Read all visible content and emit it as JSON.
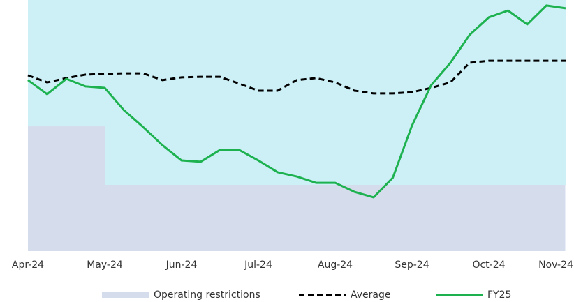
{
  "chart_data": {
    "type": "line",
    "x": [
      0,
      0.25,
      0.5,
      0.75,
      1,
      1.25,
      1.5,
      1.75,
      2,
      2.25,
      2.5,
      2.75,
      3,
      3.25,
      3.5,
      3.75,
      4,
      4.25,
      4.5,
      4.75,
      5,
      5.25,
      5.5,
      5.75,
      6,
      6.25,
      6.5,
      6.75,
      7
    ],
    "xlim": [
      0,
      7
    ],
    "xticks": [
      {
        "value": 0,
        "label": "Apr-24"
      },
      {
        "value": 1,
        "label": "May-24"
      },
      {
        "value": 2,
        "label": "Jun-24"
      },
      {
        "value": 3,
        "label": "Jul-24"
      },
      {
        "value": 4,
        "label": "Aug-24"
      },
      {
        "value": 5,
        "label": "Sep-24"
      },
      {
        "value": 6,
        "label": "Oct-24"
      },
      {
        "value": 7,
        "label": "Nov-24"
      }
    ],
    "ylim": [
      0,
      100
    ],
    "background": "#cdf0f7",
    "series": [
      {
        "name": "Operating restrictions",
        "kind": "area",
        "step": "after",
        "color": "#d5dcec",
        "values": [
          49.7,
          49.7,
          49.7,
          49.7,
          26.4,
          26.4,
          26.4,
          26.4,
          26.4,
          26.4,
          26.4,
          26.4,
          26.4,
          26.4,
          26.4,
          26.4,
          26.4,
          26.4,
          26.4,
          26.4,
          26.4,
          26.4,
          26.4,
          26.4,
          26.4,
          26.4,
          26.4,
          26.4,
          26.4
        ]
      },
      {
        "name": "Average",
        "kind": "line",
        "dashed": true,
        "color": "#000000",
        "values": [
          70,
          67.2,
          68.9,
          70.3,
          70.6,
          70.8,
          70.8,
          68.1,
          69.2,
          69.4,
          69.4,
          66.7,
          63.9,
          63.9,
          68.1,
          68.9,
          67.2,
          63.9,
          62.8,
          62.8,
          63.3,
          65,
          67.2,
          75,
          75.8,
          75.8,
          75.8,
          75.8,
          75.8
        ]
      },
      {
        "name": "FY25",
        "kind": "line",
        "dashed": false,
        "color": "#1db24f",
        "values": [
          68.1,
          62.5,
          68.6,
          65.6,
          65,
          56.1,
          49.4,
          42.2,
          36.1,
          35.6,
          40.3,
          40.3,
          36.1,
          31.4,
          29.7,
          27.2,
          27.2,
          23.6,
          21.4,
          29.2,
          50,
          66.1,
          75,
          86.1,
          93.1,
          95.8,
          90.3,
          97.8,
          96.7
        ]
      }
    ]
  }
}
